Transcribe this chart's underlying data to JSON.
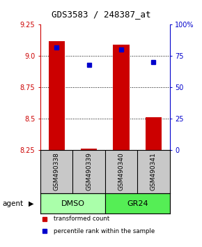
{
  "title": "GDS3583 / 248387_at",
  "samples": [
    "GSM490338",
    "GSM490339",
    "GSM490340",
    "GSM490341"
  ],
  "red_values": [
    9.12,
    8.262,
    9.09,
    8.51
  ],
  "blue_values": [
    82,
    68,
    80,
    70
  ],
  "ylim_left": [
    8.25,
    9.25
  ],
  "ylim_right": [
    0,
    100
  ],
  "yticks_left": [
    8.25,
    8.5,
    8.75,
    9.0,
    9.25
  ],
  "yticks_right": [
    0,
    25,
    50,
    75,
    100
  ],
  "ytick_labels_right": [
    "0",
    "25",
    "50",
    "75",
    "100%"
  ],
  "groups": [
    {
      "label": "DMSO",
      "samples": [
        0,
        1
      ],
      "color": "#aaffaa"
    },
    {
      "label": "GR24",
      "samples": [
        2,
        3
      ],
      "color": "#55ee55"
    }
  ],
  "bar_color": "#cc0000",
  "dot_color": "#0000cc",
  "bar_width": 0.5,
  "axis_color_left": "#cc0000",
  "axis_color_right": "#0000cc",
  "bg_plot": "#ffffff",
  "bg_sample_box": "#c8c8c8",
  "agent_label": "agent",
  "legend_red": "transformed count",
  "legend_blue": "percentile rank within the sample"
}
